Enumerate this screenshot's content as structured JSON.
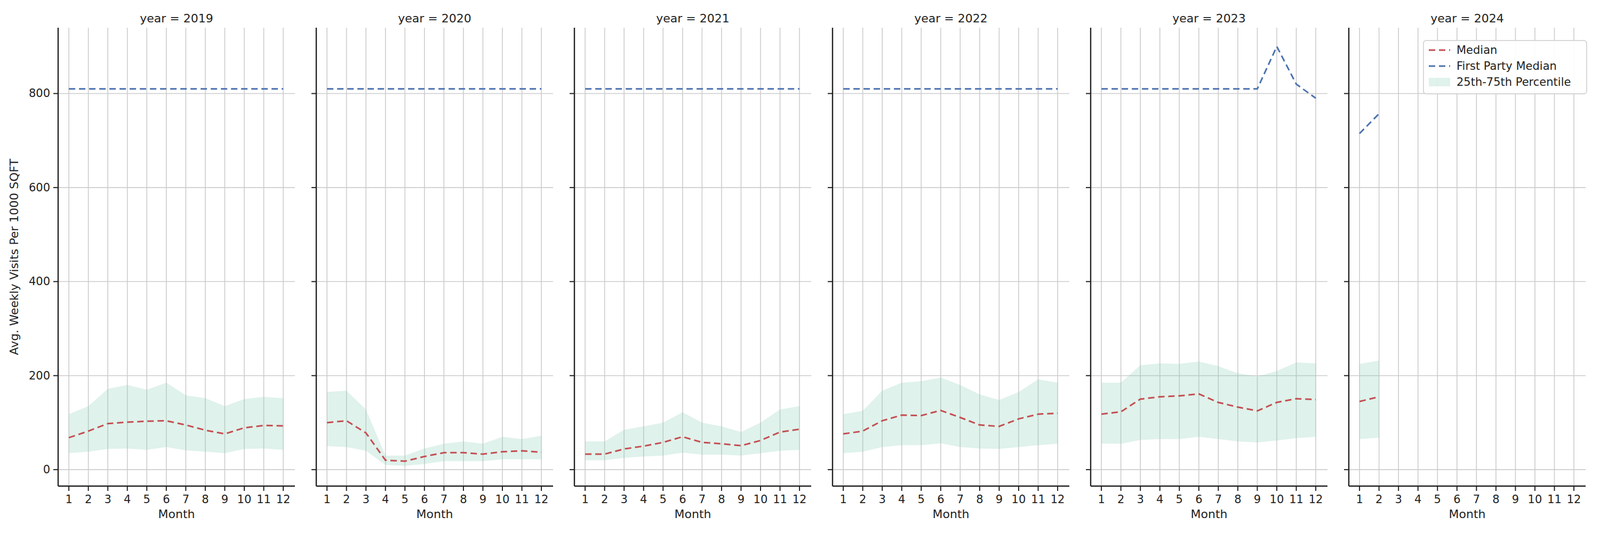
{
  "chart_data": [
    {
      "type": "line",
      "title": "year = 2019",
      "x_label": "Month",
      "y_label": "Avg. Weekly Visits Per 1000 SQFT",
      "x": [
        1,
        2,
        3,
        4,
        5,
        6,
        7,
        8,
        9,
        10,
        11,
        12
      ],
      "xlim": [
        0.45,
        12.6
      ],
      "ylim": [
        -35,
        940
      ],
      "xticks": [
        1,
        2,
        3,
        4,
        5,
        6,
        7,
        8,
        9,
        10,
        11,
        12
      ],
      "yticks": [
        0,
        200,
        400,
        600,
        800
      ],
      "grid": true,
      "series": [
        {
          "name": "Median",
          "type": "line",
          "color": "#c44e52",
          "line_style": "dashed",
          "values": [
            68,
            82,
            98,
            101,
            103,
            104,
            95,
            84,
            76,
            89,
            94,
            93
          ]
        },
        {
          "name": "First Party Median",
          "type": "line",
          "color": "#4c72b0",
          "line_style": "dashed",
          "values": [
            810,
            810,
            810,
            810,
            810,
            810,
            810,
            810,
            810,
            810,
            810,
            810
          ]
        },
        {
          "name": "25th-75th Percentile",
          "type": "area",
          "color": "#7fcdb0",
          "lower": [
            35,
            38,
            44,
            45,
            42,
            48,
            41,
            38,
            35,
            44,
            45,
            42
          ],
          "upper": [
            118,
            135,
            172,
            180,
            170,
            185,
            158,
            152,
            135,
            150,
            155,
            152
          ]
        }
      ]
    },
    {
      "type": "line",
      "title": "year = 2020",
      "x_label": "Month",
      "tick_labels": "x",
      "x": [
        1,
        2,
        3,
        4,
        5,
        6,
        7,
        8,
        9,
        10,
        11,
        12
      ],
      "xlim": [
        0.45,
        12.6
      ],
      "ylim": [
        -35,
        940
      ],
      "xticks": [
        1,
        2,
        3,
        4,
        5,
        6,
        7,
        8,
        9,
        10,
        11,
        12
      ],
      "yticks": [
        0,
        200,
        400,
        600,
        800
      ],
      "grid": true,
      "series": [
        {
          "name": "Median",
          "type": "line",
          "color": "#c44e52",
          "line_style": "dashed",
          "values": [
            100,
            104,
            78,
            20,
            18,
            28,
            36,
            36,
            33,
            38,
            40,
            37
          ]
        },
        {
          "name": "First Party Median",
          "type": "line",
          "color": "#4c72b0",
          "line_style": "dashed",
          "values": [
            810,
            810,
            810,
            810,
            810,
            810,
            810,
            810,
            810,
            810,
            810,
            810
          ]
        },
        {
          "name": "25th-75th Percentile",
          "type": "area",
          "color": "#7fcdb0",
          "lower": [
            50,
            48,
            40,
            10,
            8,
            12,
            18,
            18,
            18,
            22,
            22,
            22
          ],
          "upper": [
            165,
            168,
            128,
            30,
            30,
            45,
            55,
            60,
            55,
            70,
            65,
            72
          ]
        }
      ]
    },
    {
      "type": "line",
      "title": "year = 2021",
      "x_label": "Month",
      "tick_labels": "x",
      "x": [
        1,
        2,
        3,
        4,
        5,
        6,
        7,
        8,
        9,
        10,
        11,
        12
      ],
      "xlim": [
        0.45,
        12.6
      ],
      "ylim": [
        -35,
        940
      ],
      "xticks": [
        1,
        2,
        3,
        4,
        5,
        6,
        7,
        8,
        9,
        10,
        11,
        12
      ],
      "yticks": [
        0,
        200,
        400,
        600,
        800
      ],
      "grid": true,
      "series": [
        {
          "name": "Median",
          "type": "line",
          "color": "#c44e52",
          "line_style": "dashed",
          "values": [
            33,
            33,
            44,
            50,
            58,
            70,
            58,
            55,
            51,
            62,
            80,
            86
          ]
        },
        {
          "name": "First Party Median",
          "type": "line",
          "color": "#4c72b0",
          "line_style": "dashed",
          "values": [
            810,
            810,
            810,
            810,
            810,
            810,
            810,
            810,
            810,
            810,
            810,
            810
          ]
        },
        {
          "name": "25th-75th Percentile",
          "type": "area",
          "color": "#7fcdb0",
          "lower": [
            20,
            20,
            25,
            28,
            30,
            36,
            32,
            32,
            30,
            35,
            40,
            42
          ],
          "upper": [
            60,
            60,
            85,
            92,
            100,
            122,
            100,
            92,
            80,
            100,
            128,
            135
          ]
        }
      ]
    },
    {
      "type": "line",
      "title": "year = 2022",
      "x_label": "Month",
      "tick_labels": "x",
      "x": [
        1,
        2,
        3,
        4,
        5,
        6,
        7,
        8,
        9,
        10,
        11,
        12
      ],
      "xlim": [
        0.45,
        12.6
      ],
      "ylim": [
        -35,
        940
      ],
      "xticks": [
        1,
        2,
        3,
        4,
        5,
        6,
        7,
        8,
        9,
        10,
        11,
        12
      ],
      "yticks": [
        0,
        200,
        400,
        600,
        800
      ],
      "grid": true,
      "series": [
        {
          "name": "Median",
          "type": "line",
          "color": "#c44e52",
          "line_style": "dashed",
          "values": [
            76,
            82,
            104,
            116,
            115,
            126,
            111,
            95,
            92,
            108,
            118,
            120
          ]
        },
        {
          "name": "First Party Median",
          "type": "line",
          "color": "#4c72b0",
          "line_style": "dashed",
          "values": [
            810,
            810,
            810,
            810,
            810,
            810,
            810,
            810,
            810,
            810,
            810,
            810
          ]
        },
        {
          "name": "25th-75th Percentile",
          "type": "area",
          "color": "#7fcdb0",
          "lower": [
            35,
            38,
            48,
            52,
            52,
            56,
            48,
            45,
            44,
            48,
            52,
            55
          ],
          "upper": [
            118,
            125,
            168,
            185,
            188,
            196,
            180,
            160,
            148,
            165,
            192,
            185
          ]
        }
      ]
    },
    {
      "type": "line",
      "title": "year = 2023",
      "x_label": "Month",
      "tick_labels": "x",
      "x": [
        1,
        2,
        3,
        4,
        5,
        6,
        7,
        8,
        9,
        10,
        11,
        12
      ],
      "xlim": [
        0.45,
        12.6
      ],
      "ylim": [
        -35,
        940
      ],
      "xticks": [
        1,
        2,
        3,
        4,
        5,
        6,
        7,
        8,
        9,
        10,
        11,
        12
      ],
      "yticks": [
        0,
        200,
        400,
        600,
        800
      ],
      "grid": true,
      "series": [
        {
          "name": "Median",
          "type": "line",
          "color": "#c44e52",
          "line_style": "dashed",
          "values": [
            118,
            123,
            150,
            155,
            157,
            161,
            143,
            133,
            125,
            143,
            151,
            149
          ]
        },
        {
          "name": "First Party Median",
          "type": "line",
          "color": "#4c72b0",
          "line_style": "dashed",
          "values": [
            810,
            810,
            810,
            810,
            810,
            810,
            810,
            810,
            810,
            900,
            820,
            790
          ]
        },
        {
          "name": "25th-75th Percentile",
          "type": "area",
          "color": "#7fcdb0",
          "lower": [
            55,
            55,
            63,
            65,
            65,
            70,
            65,
            60,
            58,
            62,
            67,
            70
          ],
          "upper": [
            185,
            185,
            222,
            226,
            225,
            230,
            220,
            205,
            198,
            210,
            228,
            226
          ]
        }
      ]
    },
    {
      "type": "line",
      "title": "year = 2024",
      "x_label": "Month",
      "tick_labels": "x",
      "legend": "upper right",
      "x": [
        1,
        2,
        3,
        4,
        5,
        6,
        7,
        8,
        9,
        10,
        11,
        12
      ],
      "xlim": [
        0.45,
        12.6
      ],
      "ylim": [
        -35,
        940
      ],
      "xticks": [
        1,
        2,
        3,
        4,
        5,
        6,
        7,
        8,
        9,
        10,
        11,
        12
      ],
      "yticks": [
        0,
        200,
        400,
        600,
        800
      ],
      "grid": true,
      "series": [
        {
          "name": "Median",
          "type": "line",
          "color": "#c44e52",
          "line_style": "dashed",
          "values": [
            145,
            155,
            null,
            null,
            null,
            null,
            null,
            null,
            null,
            null,
            null,
            null
          ]
        },
        {
          "name": "First Party Median",
          "type": "line",
          "color": "#4c72b0",
          "line_style": "dashed",
          "values": [
            715,
            757,
            null,
            null,
            null,
            null,
            null,
            null,
            null,
            null,
            null,
            null
          ]
        },
        {
          "name": "25th-75th Percentile",
          "type": "area",
          "color": "#7fcdb0",
          "lower": [
            65,
            68,
            null,
            null,
            null,
            null,
            null,
            null,
            null,
            null,
            null,
            null
          ],
          "upper": [
            225,
            232,
            null,
            null,
            null,
            null,
            null,
            null,
            null,
            null,
            null,
            null
          ]
        }
      ]
    }
  ]
}
